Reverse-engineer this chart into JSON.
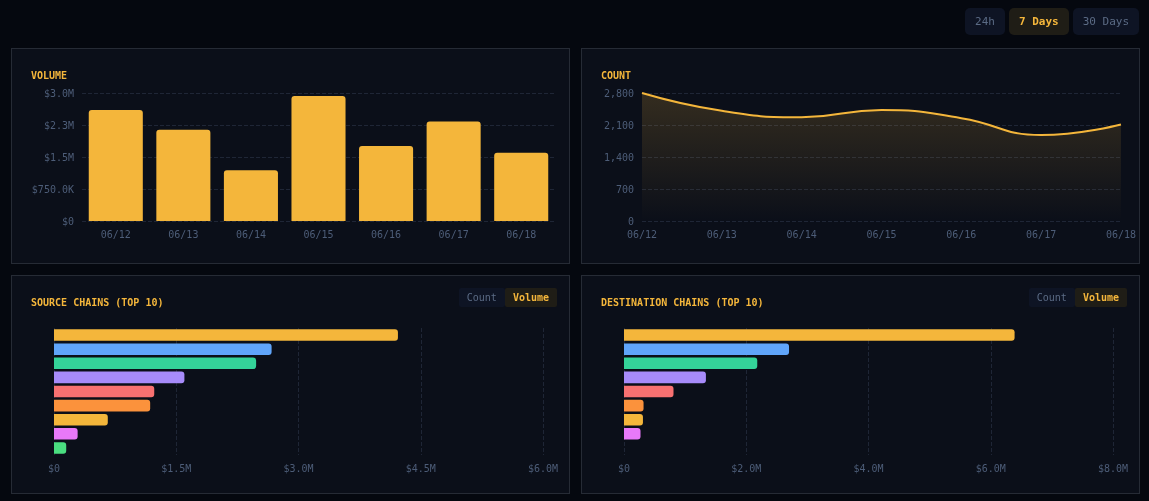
{
  "chart_data": [
    {
      "type": "bar",
      "title": "VOLUME",
      "annotations": [
        "24h",
        "7 Days",
        "30 Days"
      ],
      "categories": [
        "06/12",
        "06/13",
        "06/14",
        "06/15",
        "06/16",
        "06/17",
        "06/18"
      ],
      "values": [
        2600000,
        2140000,
        1190000,
        2930000,
        1760000,
        2330000,
        1600000
      ],
      "color": "#f4b63b",
      "ylim": [
        0,
        3000000
      ],
      "yticks": [
        {
          "value": 0,
          "label": "$0"
        },
        {
          "value": 750000,
          "label": "$750.0K"
        },
        {
          "value": 1500000,
          "label": "$1.5M"
        },
        {
          "value": 2250000,
          "label": "$2.3M"
        },
        {
          "value": 3000000,
          "label": "$3.0M"
        }
      ],
      "grid": "y"
    },
    {
      "type": "area",
      "title": "COUNT",
      "categories": [
        "06/12",
        "06/13",
        "06/14",
        "06/15",
        "06/16",
        "06/17",
        "06/18"
      ],
      "values": [
        2800,
        2410,
        2270,
        2430,
        2250,
        1880,
        2110
      ],
      "color": "#f4b63b",
      "ylim": [
        0,
        2800
      ],
      "yticks": [
        0,
        {
          "value": 700,
          "label": "700"
        },
        {
          "value": 1400,
          "label": "1,400"
        },
        {
          "value": 2100,
          "label": "2,100"
        },
        {
          "value": 2800,
          "label": "2,800"
        }
      ],
      "grid": "y",
      "marker": "none"
    },
    {
      "type": "bar",
      "orientation": "horizontal",
      "title": "SOURCE CHAINS (TOP 10)",
      "annotations": [
        "Count",
        "Volume"
      ],
      "categories": [
        null,
        null,
        null,
        null,
        null,
        null,
        null,
        null,
        null
      ],
      "values": [
        4220000,
        2670000,
        2480000,
        1600000,
        1230000,
        1180000,
        660000,
        290000,
        150000
      ],
      "colors": [
        "#f4b63b",
        "#60a5fa",
        "#34d399",
        "#a78bfa",
        "#f87171",
        "#fb923c",
        "#f4b63b",
        "#e879f9",
        "#4ade80"
      ],
      "xlim": [
        0,
        6000000
      ],
      "xticks": [
        {
          "value": 0,
          "label": "$0"
        },
        {
          "value": 1500000,
          "label": "$1.5M"
        },
        {
          "value": 3000000,
          "label": "$3.0M"
        },
        {
          "value": 4500000,
          "label": "$4.5M"
        },
        {
          "value": 6000000,
          "label": "$6.0M"
        }
      ],
      "grid": "x"
    },
    {
      "type": "bar",
      "orientation": "horizontal",
      "title": "DESTINATION CHAINS (TOP 10)",
      "annotations": [
        "Count",
        "Volume"
      ],
      "categories": [
        null,
        null,
        null,
        null,
        null,
        null,
        null,
        null,
        null
      ],
      "values": [
        6390000,
        2700000,
        2180000,
        1340000,
        810000,
        320000,
        310000,
        270000,
        0
      ],
      "colors": [
        "#f4b63b",
        "#60a5fa",
        "#34d399",
        "#a78bfa",
        "#f87171",
        "#fb923c",
        "#f4b63b",
        "#e879f9",
        "#4ade80"
      ],
      "xlim": [
        0,
        8000000
      ],
      "xticks": [
        {
          "value": 0,
          "label": "$0"
        },
        {
          "value": 2000000,
          "label": "$2.0M"
        },
        {
          "value": 4000000,
          "label": "$4.0M"
        },
        {
          "value": 6000000,
          "label": "$6.0M"
        },
        {
          "value": 8000000,
          "label": "$8.0M"
        }
      ],
      "grid": "x"
    }
  ]
}
